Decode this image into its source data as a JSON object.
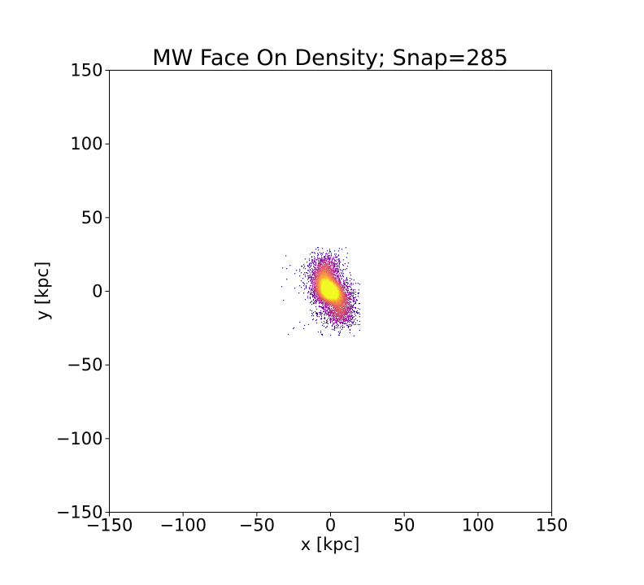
{
  "chart_data": {
    "type": "heatmap",
    "title": "MW Face On Density; Snap=285",
    "xlabel": "x [kpc]",
    "ylabel": "y [kpc]",
    "xlim": [
      -150,
      150
    ],
    "ylim": [
      -150,
      150
    ],
    "xticks": [
      -150,
      -100,
      -50,
      0,
      50,
      100,
      150
    ],
    "yticks": [
      -150,
      -100,
      -50,
      0,
      50,
      100,
      150
    ],
    "xtick_labels": [
      "−150",
      "−100",
      "−50",
      "0",
      "50",
      "100",
      "150"
    ],
    "ytick_labels": [
      "−150",
      "−100",
      "−50",
      "0",
      "50",
      "100",
      "150"
    ],
    "colormap": "plasma",
    "grid": false,
    "density_blobs": [
      {
        "x": 0,
        "y": 0,
        "sx": 5,
        "sy": 5,
        "weight": 1.0
      },
      {
        "x": -4,
        "y": 10,
        "sx": 6,
        "sy": 7,
        "weight": 0.6
      },
      {
        "x": 7,
        "y": -8,
        "sx": 6,
        "sy": 8,
        "weight": 0.6
      },
      {
        "x": -7,
        "y": 3,
        "sx": 5,
        "sy": 9,
        "weight": 0.35
      },
      {
        "x": 4,
        "y": -17,
        "sx": 7,
        "sy": 4,
        "weight": 0.25
      },
      {
        "x": -2,
        "y": 20,
        "sx": 6,
        "sy": 4,
        "weight": 0.25
      }
    ],
    "extent": {
      "xmin": -35,
      "xmax": 20,
      "ymin": -30,
      "ymax": 30
    }
  }
}
